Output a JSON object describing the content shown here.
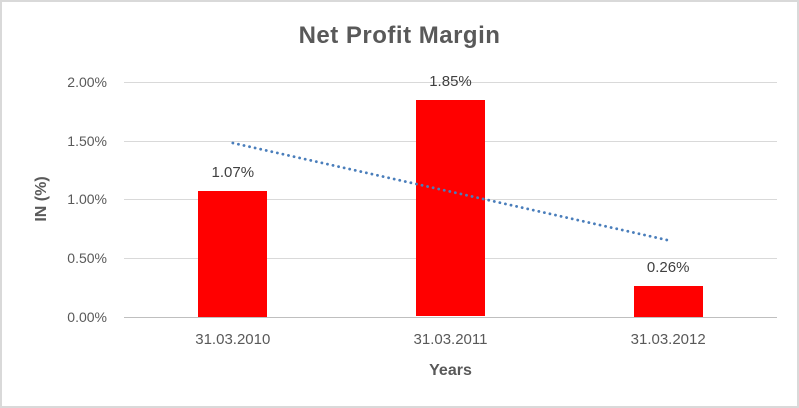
{
  "chart_data": {
    "type": "bar",
    "title": "Net Profit Margin",
    "xlabel": "Years",
    "ylabel": "IN (%)",
    "categories": [
      "31.03.2010",
      "31.03.2011",
      "31.03.2012"
    ],
    "values": [
      1.07,
      1.85,
      0.26
    ],
    "data_labels": [
      "1.07%",
      "1.85%",
      "0.26%"
    ],
    "y_ticks": [
      "0.00%",
      "0.50%",
      "1.00%",
      "1.50%",
      "2.00%"
    ],
    "ylim": [
      0,
      2
    ],
    "grid": true,
    "legend": "none",
    "bar_color": "#FF0000",
    "trendline": {
      "type": "linear",
      "style": "dotted",
      "color": "#4A7EBB",
      "start_value": 1.48,
      "end_value": 0.65
    }
  },
  "colors": {
    "title_text": "#595959",
    "axis_text": "#595959",
    "data_label_text": "#404040",
    "gridline": "#D9D9D9",
    "axis_line": "#BFBFBF",
    "frame_border": "#D9D9D9",
    "background": "#FFFFFF"
  }
}
